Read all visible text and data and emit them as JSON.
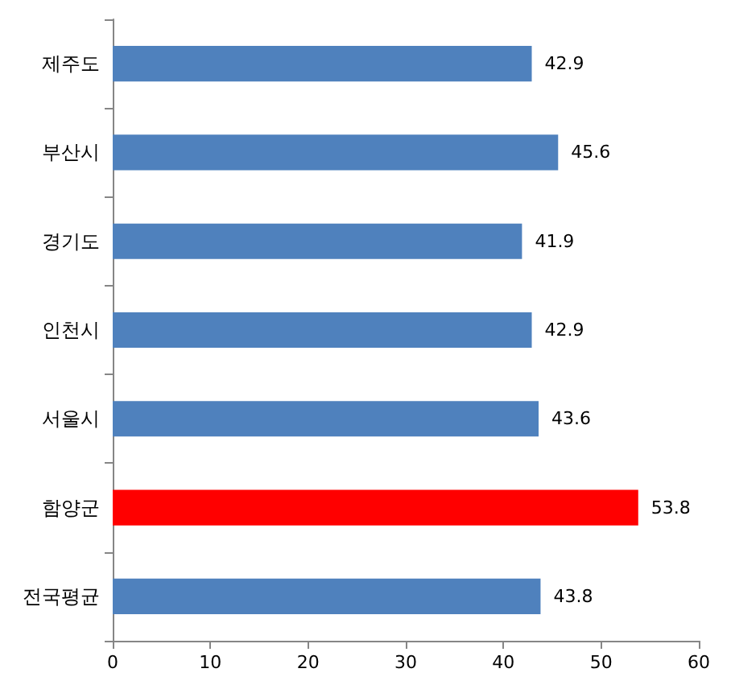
{
  "chart_data": {
    "type": "bar",
    "orientation": "horizontal",
    "categories": [
      "제주도",
      "부산시",
      "경기도",
      "인천시",
      "서울시",
      "함양군",
      "전국평균"
    ],
    "values": [
      42.9,
      45.6,
      41.9,
      42.9,
      43.6,
      53.8,
      43.8
    ],
    "colors": [
      "#4f81bd",
      "#4f81bd",
      "#4f81bd",
      "#4f81bd",
      "#4f81bd",
      "#ff0000",
      "#4f81bd"
    ],
    "xlim": [
      0,
      60
    ],
    "xticks": [
      0,
      10,
      20,
      30,
      40,
      50,
      60
    ],
    "data_labels": true
  }
}
